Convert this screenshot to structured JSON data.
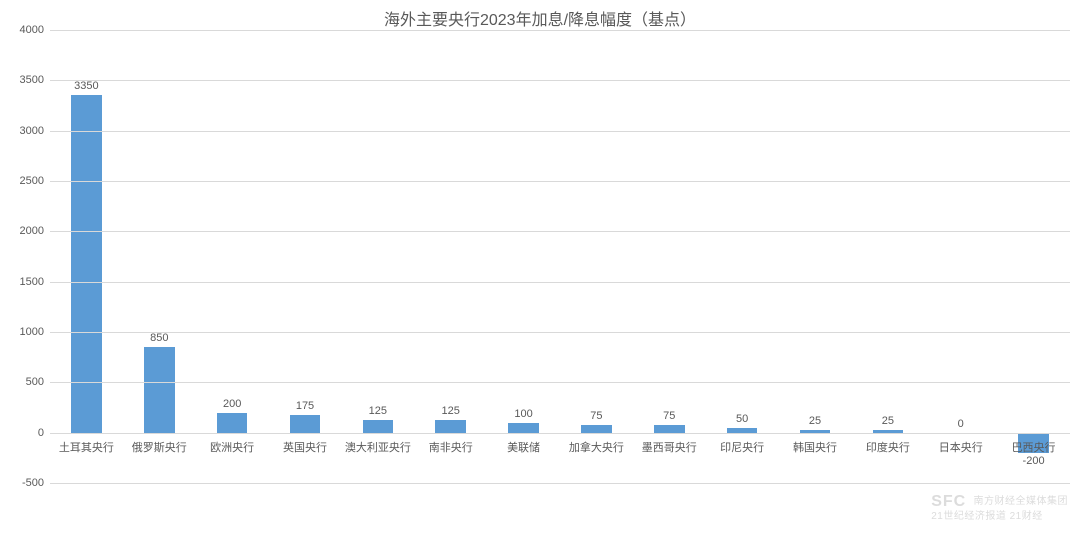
{
  "chart": {
    "type": "bar",
    "title": "海外主要央行2023年加息/降息幅度（基点）",
    "title_fontsize": 16,
    "title_color": "#595959",
    "background_color": "#ffffff",
    "grid_color": "#d9d9d9",
    "axis_label_color": "#595959",
    "tick_fontsize": 11,
    "value_label_fontsize": 11,
    "category_fontsize": 11,
    "ylim": [
      -500,
      4000
    ],
    "ytick_step": 500,
    "yticks": [
      -500,
      0,
      500,
      1000,
      1500,
      2000,
      2500,
      3000,
      3500,
      4000
    ],
    "bar_color": "#5b9bd5",
    "bar_width_ratio": 0.42,
    "categories": [
      "土耳其央行",
      "俄罗斯央行",
      "欧洲央行",
      "英国央行",
      "澳大利亚央行",
      "南非央行",
      "美联储",
      "加拿大央行",
      "墨西哥央行",
      "印尼央行",
      "韩国央行",
      "印度央行",
      "日本央行",
      "巴西央行"
    ],
    "values": [
      3350,
      850,
      200,
      175,
      125,
      125,
      100,
      75,
      75,
      50,
      25,
      25,
      0,
      -200
    ]
  },
  "watermark": {
    "logo_text": "SFC",
    "line1": "南方财经全媒体集团",
    "line2": "21世纪经济报道  21财经"
  }
}
